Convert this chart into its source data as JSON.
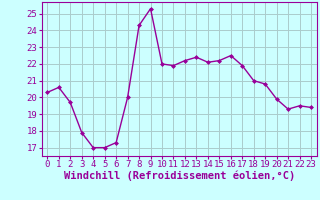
{
  "x": [
    0,
    1,
    2,
    3,
    4,
    5,
    6,
    7,
    8,
    9,
    10,
    11,
    12,
    13,
    14,
    15,
    16,
    17,
    18,
    19,
    20,
    21,
    22,
    23
  ],
  "y": [
    20.3,
    20.6,
    19.7,
    17.9,
    17.0,
    17.0,
    17.3,
    20.0,
    24.3,
    25.3,
    22.0,
    21.9,
    22.2,
    22.4,
    22.1,
    22.2,
    22.5,
    21.9,
    21.0,
    20.8,
    19.9,
    19.3,
    19.5,
    19.4
  ],
  "line_color": "#990099",
  "marker": "D",
  "marker_size": 2.0,
  "bg_color": "#ccffff",
  "grid_color": "#aacccc",
  "xlabel": "Windchill (Refroidissement éolien,°C)",
  "xlim": [
    -0.5,
    23.5
  ],
  "ylim": [
    16.5,
    25.7
  ],
  "yticks": [
    17,
    18,
    19,
    20,
    21,
    22,
    23,
    24,
    25
  ],
  "xticks": [
    0,
    1,
    2,
    3,
    4,
    5,
    6,
    7,
    8,
    9,
    10,
    11,
    12,
    13,
    14,
    15,
    16,
    17,
    18,
    19,
    20,
    21,
    22,
    23
  ],
  "xlabel_fontsize": 7.5,
  "tick_fontsize": 6.5,
  "line_width": 1.0
}
